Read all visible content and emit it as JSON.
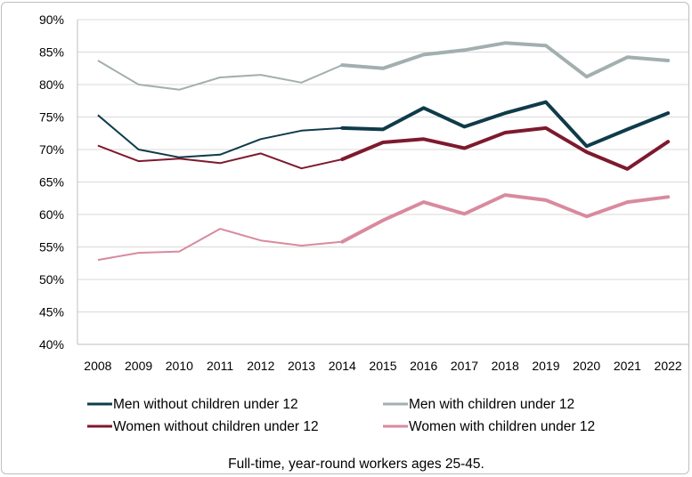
{
  "chart_data": {
    "type": "line",
    "title": "",
    "xlabel": "",
    "ylabel": "",
    "caption": "Full-time, year-round workers ages 25-45.",
    "categories": [
      "2008",
      "2009",
      "2010",
      "2011",
      "2012",
      "2013",
      "2014",
      "2015",
      "2016",
      "2017",
      "2018",
      "2019",
      "2020",
      "2021",
      "2022"
    ],
    "y_ticks": [
      "40%",
      "45%",
      "50%",
      "55%",
      "60%",
      "65%",
      "70%",
      "75%",
      "80%",
      "85%",
      "90%"
    ],
    "ylim": [
      40,
      90
    ],
    "grid": "horizontal",
    "legend_position": "bottom",
    "thick_from_index": 6,
    "series": [
      {
        "name": "Men without children under 12",
        "color": "#0f3b4a",
        "values": [
          75.3,
          70.0,
          68.8,
          69.2,
          71.6,
          72.9,
          73.3,
          73.1,
          76.4,
          73.5,
          75.6,
          77.3,
          70.5,
          73.1,
          75.6
        ]
      },
      {
        "name": "Men with children under 12",
        "color": "#a3afaf",
        "values": [
          83.7,
          80.0,
          79.2,
          81.1,
          81.5,
          80.3,
          83.0,
          82.5,
          84.6,
          85.3,
          86.4,
          86.0,
          81.2,
          84.2,
          83.7
        ]
      },
      {
        "name": "Women without children under 12",
        "color": "#7d1a2e",
        "values": [
          70.6,
          68.2,
          68.6,
          67.9,
          69.4,
          67.1,
          68.5,
          71.1,
          71.6,
          70.2,
          72.6,
          73.3,
          69.6,
          67.0,
          71.2
        ]
      },
      {
        "name": "Women with children under 12",
        "color": "#d98a9e",
        "values": [
          53.0,
          54.1,
          54.3,
          57.8,
          56.0,
          55.2,
          55.8,
          59.1,
          61.9,
          60.1,
          63.0,
          62.2,
          59.7,
          61.9,
          62.7
        ]
      }
    ]
  }
}
